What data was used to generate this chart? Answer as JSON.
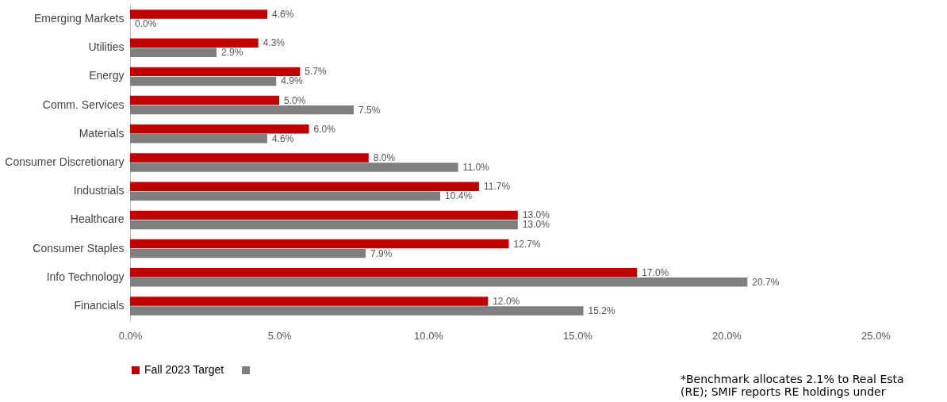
{
  "chart_data": {
    "type": "bar",
    "orientation": "horizontal",
    "categories": [
      "Emerging Markets",
      "Utilities",
      "Energy",
      "Comm. Services",
      "Materials",
      "Consumer Discretionary",
      "Industrials",
      "Healthcare",
      "Consumer Staples",
      "Info Technology",
      "Financials"
    ],
    "series": [
      {
        "name": "Fall 2023 Target",
        "color": "#c00000",
        "values": [
          4.6,
          4.3,
          5.7,
          5.0,
          6.0,
          8.0,
          11.7,
          13.0,
          12.7,
          17.0,
          12.0
        ],
        "value_labels": [
          "4.6%",
          "4.3%",
          "5.7%",
          "5.0%",
          "6.0%",
          "8.0%",
          "11.7%",
          "13.0%",
          "12.7%",
          "17.0%",
          "12.0%"
        ]
      },
      {
        "color": "#7f7f7f",
        "values": [
          0.0,
          2.9,
          4.9,
          7.5,
          4.6,
          11.0,
          10.4,
          13.0,
          7.9,
          20.7,
          15.2
        ],
        "value_labels": [
          "0.0%",
          "2.9%",
          "4.9%",
          "7.5%",
          "4.6%",
          "11.0%",
          "10.4%",
          "13.0%",
          "7.9%",
          "20.7%",
          "15.2%"
        ]
      }
    ],
    "xlim": [
      0,
      25
    ],
    "xticks": [
      {
        "value": 0,
        "label": "0.0%"
      },
      {
        "value": 5,
        "label": "5.0%"
      },
      {
        "value": 10,
        "label": "10.0%"
      },
      {
        "value": 15,
        "label": "15.0%"
      },
      {
        "value": 20,
        "label": "20.0%"
      },
      {
        "value": 25,
        "label": "25.0%"
      }
    ],
    "grid": false,
    "legend": "bottom",
    "annotations": [
      "*Benchmark allocates 2.1% to Real Esta",
      "(RE); SMIF reports RE holdings under"
    ]
  }
}
